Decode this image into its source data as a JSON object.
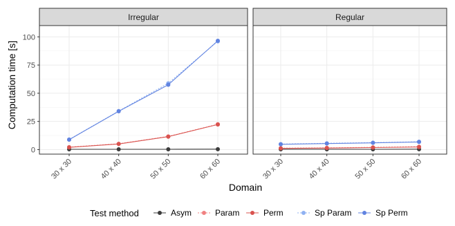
{
  "chart_data": {
    "type": "line",
    "facets": [
      "Irregular",
      "Regular"
    ],
    "categories": [
      "30 x 30",
      "40 x 40",
      "50 x 50",
      "60 x 60"
    ],
    "xlabel": "Domain",
    "ylabel": "Computation time [s]",
    "ylim": [
      -4,
      110
    ],
    "yticks": [
      0,
      25,
      50,
      75,
      100
    ],
    "grid": true,
    "legend": {
      "title": "Test method",
      "placement": "bottom"
    },
    "series": [
      {
        "name": "Asym",
        "color": "#3b3b3b",
        "dashed": false,
        "values": {
          "Irregular": [
            0.3,
            0.3,
            0.3,
            0.4
          ],
          "Regular": [
            0.3,
            0.3,
            0.3,
            0.4
          ]
        }
      },
      {
        "name": "Param",
        "color": "#f08080",
        "dashed": true,
        "values": {
          "Irregular": [
            2.2,
            5.2,
            11.7,
            22.5
          ],
          "Regular": [
            1.3,
            1.6,
            2.0,
            2.6
          ]
        }
      },
      {
        "name": "Perm",
        "color": "#d9534f",
        "dashed": false,
        "values": {
          "Irregular": [
            2.0,
            5.0,
            11.5,
            22.3
          ],
          "Regular": [
            1.1,
            1.4,
            1.8,
            2.3
          ]
        }
      },
      {
        "name": "Sp Param",
        "color": "#8fb1f2",
        "dashed": true,
        "values": {
          "Irregular": [
            9.0,
            34.2,
            58.8,
            96.0
          ],
          "Regular": [
            4.9,
            5.6,
            6.2,
            7.0
          ]
        }
      },
      {
        "name": "Sp Perm",
        "color": "#6183e0",
        "dashed": false,
        "values": {
          "Irregular": [
            8.8,
            34.0,
            57.5,
            96.5
          ],
          "Regular": [
            4.7,
            5.4,
            6.0,
            6.8
          ]
        }
      }
    ]
  }
}
